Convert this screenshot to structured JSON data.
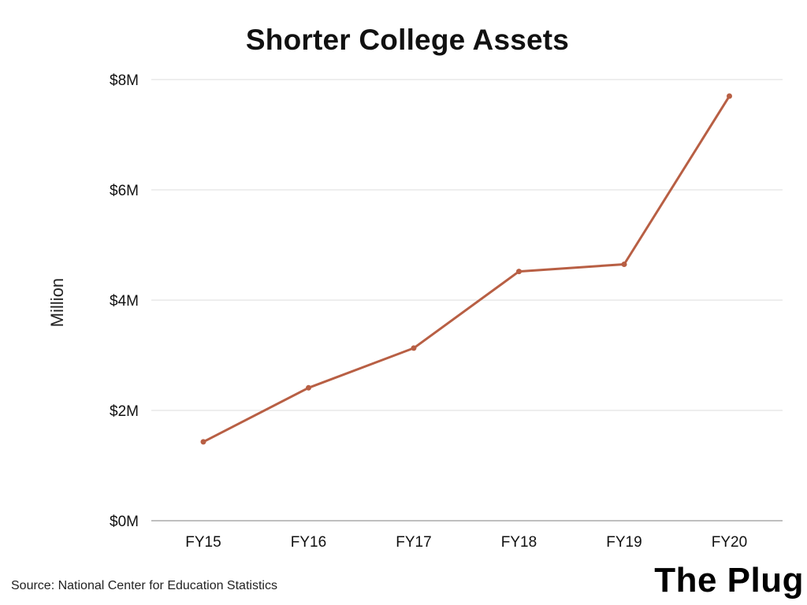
{
  "colors": {
    "line": "#b85f44",
    "grid": "#dddddd",
    "baseline": "#999999",
    "text": "#111111"
  },
  "footer": {
    "source": "Source: National Center for Education Statistics",
    "brand": "The Plug"
  },
  "chart_data": {
    "type": "line",
    "title": "Shorter College Assets",
    "xlabel": "",
    "ylabel": "Million",
    "categories": [
      "FY15",
      "FY16",
      "FY17",
      "FY18",
      "FY19",
      "FY20"
    ],
    "series": [
      {
        "values": [
          1.43,
          2.41,
          3.13,
          4.52,
          4.65,
          7.7
        ]
      }
    ],
    "ylim": [
      0,
      8
    ],
    "yticks": [
      0,
      2,
      4,
      6,
      8
    ],
    "ytick_labels": [
      "$0M",
      "$2M",
      "$4M",
      "$6M",
      "$8M"
    ],
    "grid": true,
    "legend": "none"
  }
}
